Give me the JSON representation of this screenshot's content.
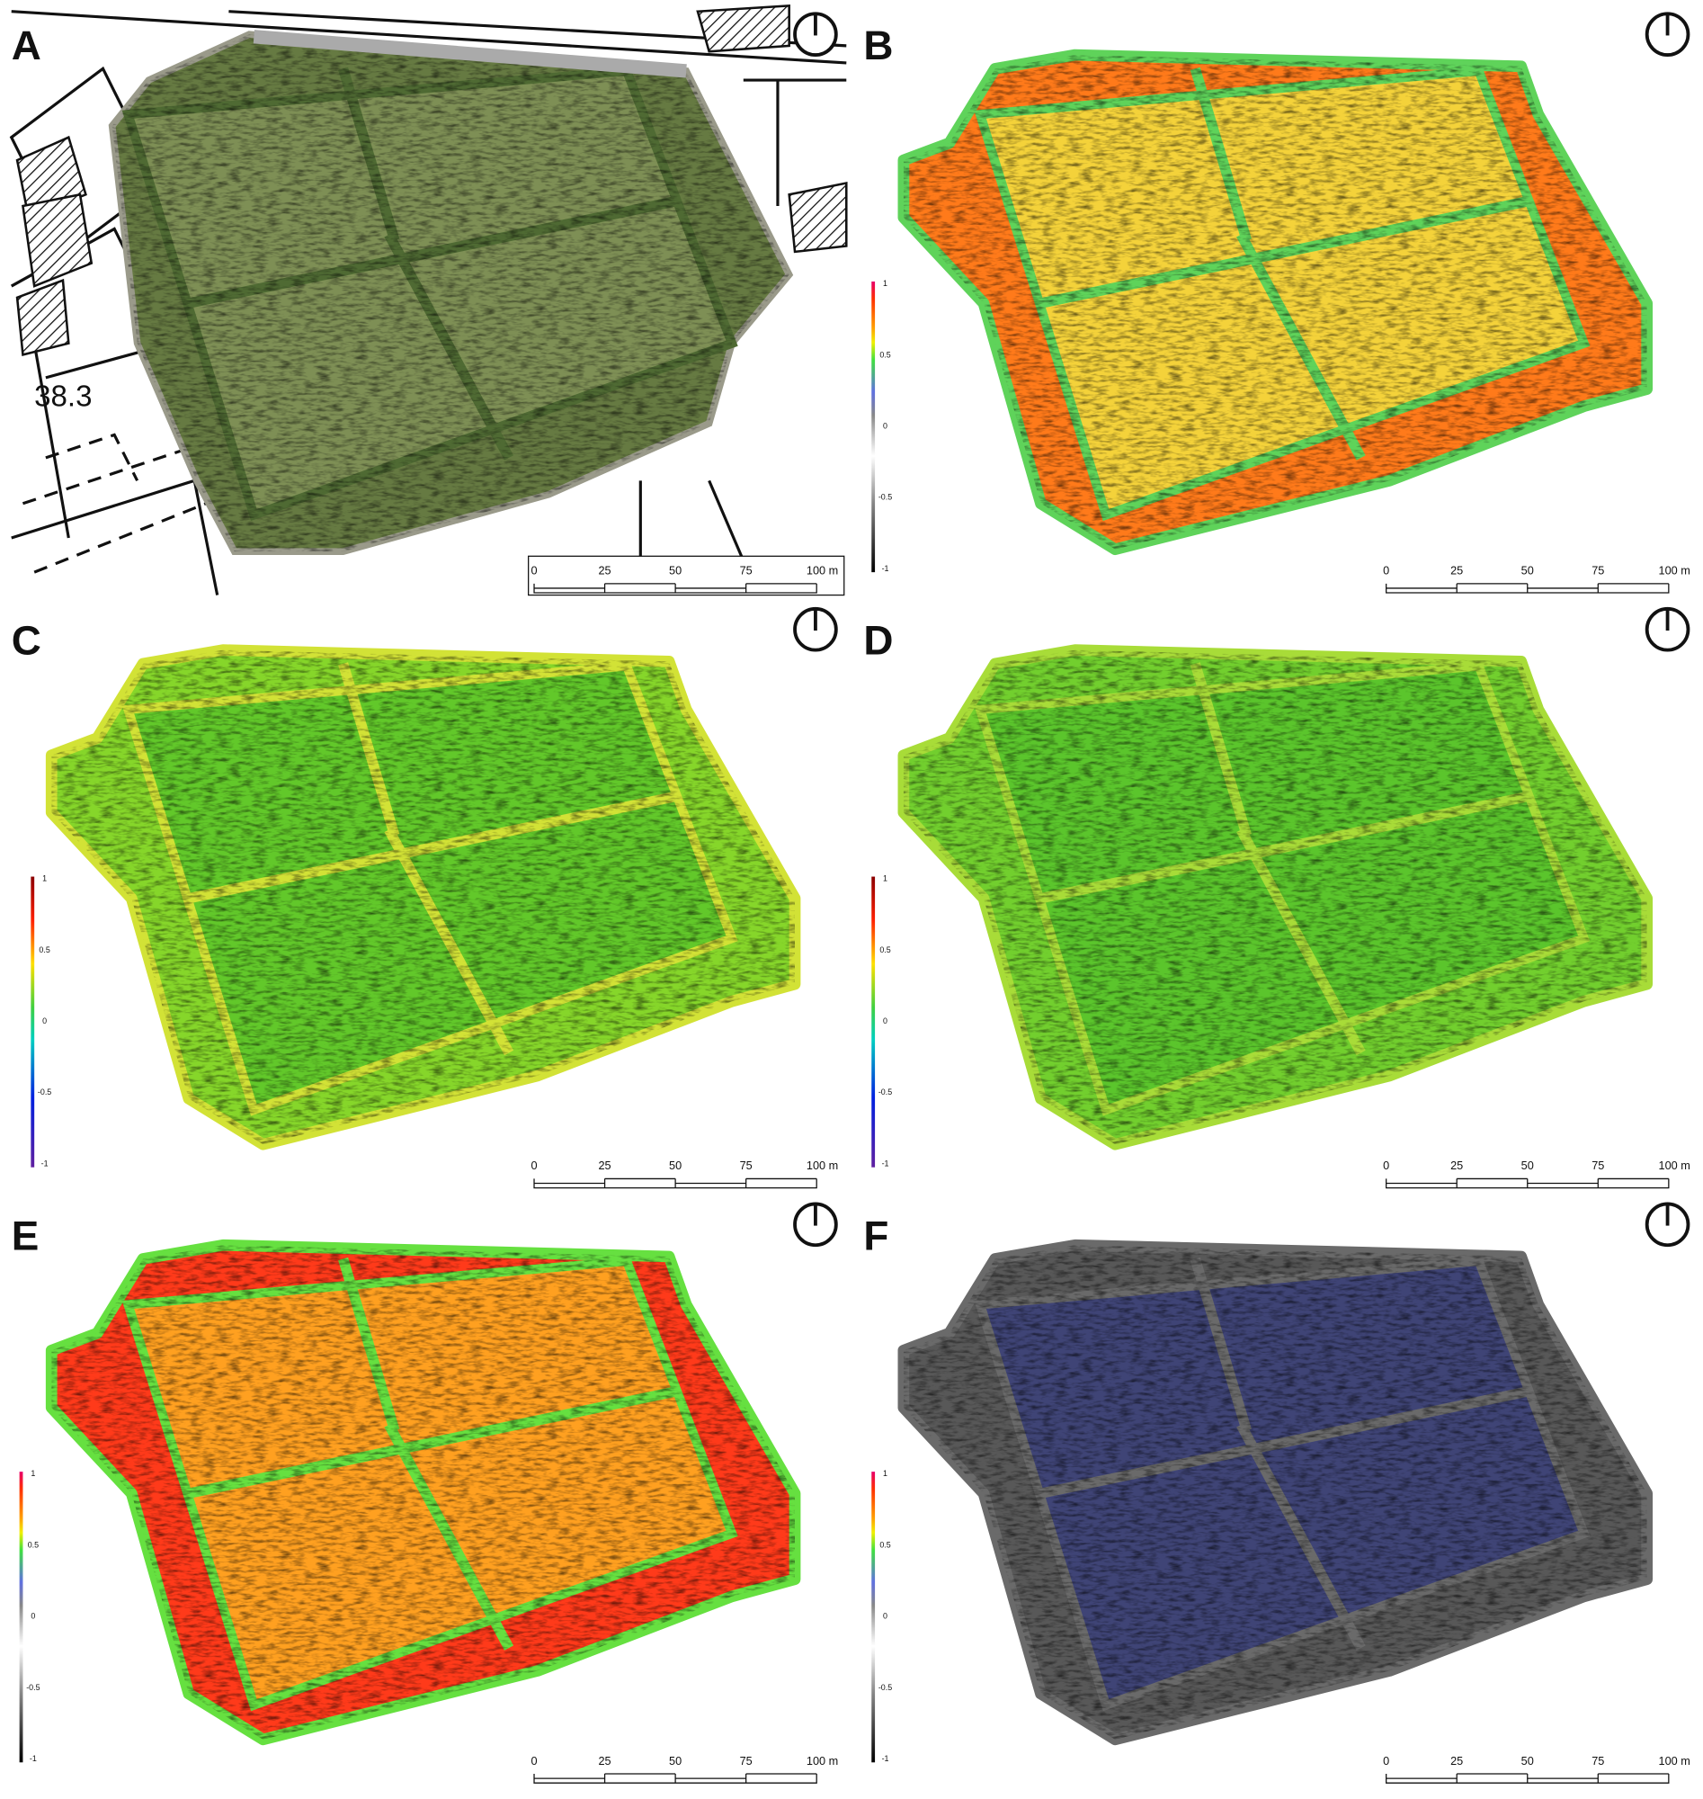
{
  "figure": {
    "panels": [
      {
        "label": "A"
      },
      {
        "label": "B"
      },
      {
        "label": "C"
      },
      {
        "label": "D"
      },
      {
        "label": "E"
      },
      {
        "label": "F"
      }
    ],
    "map_annotation": "38.3",
    "scale_bar": {
      "labels": [
        0,
        25,
        50,
        75,
        "100 m"
      ]
    },
    "colorbar": {
      "ticks": [
        1,
        0.5,
        0,
        -0.5,
        -1
      ]
    }
  }
}
